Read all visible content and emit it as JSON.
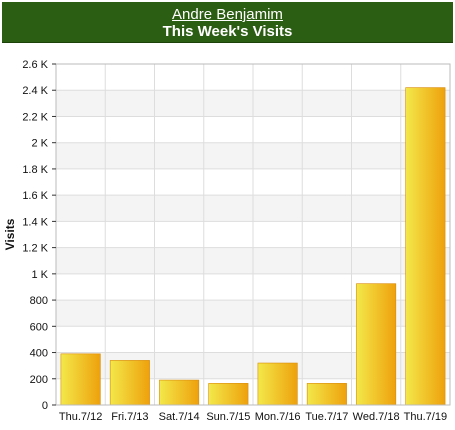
{
  "header": {
    "user_name": "Andre Benjamim",
    "title": "This Week's Visits",
    "background": "#2b5d12",
    "text_color": "#ffffff"
  },
  "chart_data": {
    "type": "bar",
    "title": "This Week's Visits",
    "xlabel": "",
    "ylabel": "Visits",
    "categories": [
      "Thu.7/12",
      "Fri.7/13",
      "Sat.7/14",
      "Sun.7/15",
      "Mon.7/16",
      "Tue.7/17",
      "Wed.7/18",
      "Thu.7/19"
    ],
    "values": [
      390,
      340,
      190,
      165,
      320,
      165,
      925,
      2420
    ],
    "ylim": [
      0,
      2600
    ],
    "yticks": [
      0,
      200,
      400,
      600,
      800,
      1000,
      1200,
      1400,
      1600,
      1800,
      2000,
      2200,
      2400,
      2600
    ],
    "ytick_labels": [
      "0",
      "200",
      "400",
      "600",
      "800",
      "1 K",
      "1.2 K",
      "1.4 K",
      "1.6 K",
      "1.8 K",
      "2 K",
      "2.2 K",
      "2.4 K",
      "2.6 K"
    ],
    "grid": true,
    "bar_colors": {
      "left": "#f3e84a",
      "right": "#eea10c",
      "edge": "#d98a06"
    },
    "legend": "none"
  }
}
